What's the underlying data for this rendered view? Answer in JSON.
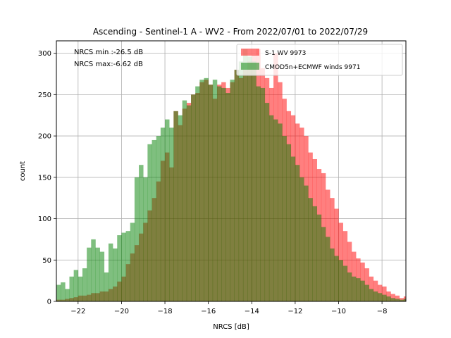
{
  "chart_data": {
    "type": "histogram",
    "title": "Ascending - Sentinel-1 A - WV2 - From 2022/07/01 to 2022/07/29",
    "xlabel": "NRCS [dB]",
    "ylabel": "count",
    "xlim": [
      -23.0,
      -6.9
    ],
    "ylim": [
      0,
      315
    ],
    "xticks": [
      -22,
      -20,
      -18,
      -16,
      -14,
      -12,
      -10,
      -8
    ],
    "xtick_labels": [
      "−22",
      "−20",
      "−18",
      "−16",
      "−14",
      "−12",
      "−10",
      "−8"
    ],
    "yticks": [
      0,
      50,
      100,
      150,
      200,
      250,
      300
    ],
    "grid": true,
    "legend_position": "top-right",
    "annotations": [
      "NRCS min :-26.5 dB",
      "NRCS max:-6.62 dB"
    ],
    "bins": {
      "start": -23.0,
      "width": 0.2
    },
    "series": [
      {
        "name": "S-1 WV 9973",
        "color": "#ff0000",
        "alpha": 0.5,
        "values": [
          2,
          2,
          3,
          4,
          5,
          7,
          7,
          8,
          10,
          10,
          12,
          12,
          15,
          18,
          24,
          30,
          45,
          58,
          68,
          82,
          95,
          110,
          125,
          145,
          170,
          180,
          162,
          230,
          213,
          233,
          240,
          250,
          252,
          265,
          268,
          262,
          245,
          262,
          265,
          258,
          265,
          280,
          270,
          280,
          290,
          298,
          305,
          282,
          270,
          258,
          300,
          265,
          245,
          230,
          225,
          215,
          210,
          200,
          180,
          172,
          160,
          155,
          135,
          125,
          112,
          95,
          85,
          72,
          60,
          52,
          47,
          40,
          30,
          25,
          20,
          18,
          12,
          9,
          7,
          4,
          6
        ]
      },
      {
        "name": "CMOD5n+ECMWF winds 9971",
        "color": "#008000",
        "alpha": 0.5,
        "values": [
          20,
          23,
          15,
          30,
          38,
          30,
          40,
          65,
          75,
          65,
          60,
          35,
          70,
          64,
          80,
          83,
          85,
          95,
          150,
          165,
          150,
          190,
          195,
          200,
          210,
          220,
          210,
          230,
          225,
          243,
          237,
          250,
          260,
          268,
          270,
          262,
          268,
          260,
          258,
          252,
          268,
          280,
          290,
          305,
          296,
          290,
          260,
          258,
          240,
          225,
          220,
          215,
          200,
          190,
          175,
          165,
          150,
          140,
          125,
          115,
          105,
          90,
          78,
          64,
          55,
          50,
          43,
          35,
          30,
          28,
          25,
          20,
          15,
          12,
          10,
          8,
          6,
          4,
          3,
          2,
          3
        ]
      }
    ]
  }
}
